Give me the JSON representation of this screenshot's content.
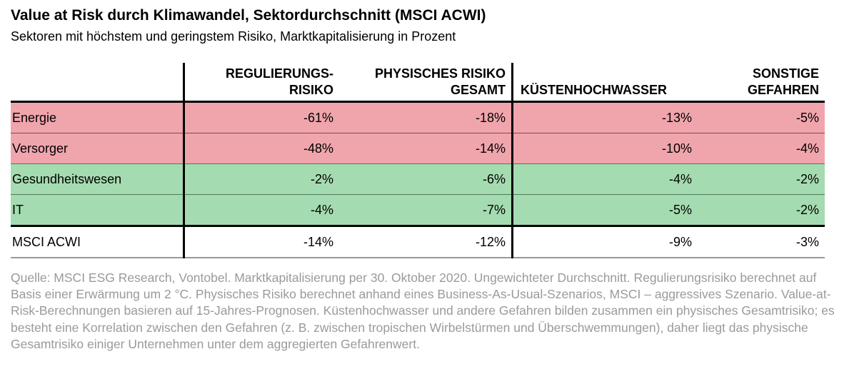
{
  "title": "Value at Risk durch Klimawandel, Sektordurchschnitt (MSCI ACWI)",
  "subtitle": "Sektoren mit höchstem und geringstem Risiko, Marktkapitalisierung in Prozent",
  "colors": {
    "high_risk": "#f0a5ad",
    "low_risk": "#a5dbb0"
  },
  "chart_data": {
    "type": "table",
    "columns": [
      "REGULIERUNGS- RISIKO",
      "PHYSISCHES RISIKO GESAMT",
      "KÜSTENHOCHWASSER",
      "SONSTIGE GEFAHREN"
    ],
    "header_lines": [
      [
        "REGULIERUNGS-",
        "RISIKO"
      ],
      [
        "PHYSISCHES RISIKO",
        "GESAMT"
      ],
      [
        "KÜSTENHOCHWASSER"
      ],
      [
        "SONSTIGE",
        "GEFAHREN"
      ]
    ],
    "rows": [
      {
        "label": "Energie",
        "group": "high",
        "values": [
          "-61%",
          "-18%",
          "-13%",
          "-5%"
        ]
      },
      {
        "label": "Versorger",
        "group": "high",
        "values": [
          "-48%",
          "-14%",
          "-10%",
          "-4%"
        ]
      },
      {
        "label": "Gesundheitswesen",
        "group": "low",
        "values": [
          "-2%",
          "-6%",
          "-4%",
          "-2%"
        ]
      },
      {
        "label": "IT",
        "group": "low",
        "values": [
          "-4%",
          "-7%",
          "-5%",
          "-2%"
        ]
      },
      {
        "label": "MSCI ACWI",
        "group": "total",
        "values": [
          "-14%",
          "-12%",
          "-9%",
          "-3%"
        ]
      }
    ]
  },
  "note": "Quelle: MSCI ESG Research, Vontobel. Marktkapitalisierung per 30. Oktober 2020. Ungewichteter Durchschnitt. Regulierungsrisiko berechnet auf Basis einer Erwärmung um 2 °C. Physisches Risiko berechnet anhand eines Business-As-Usual-Szenarios, MSCI – aggressives Szenario. Value-at-Risk-Berechnungen basieren auf 15-Jahres-Prognosen. Küstenhochwasser und andere Gefahren bilden zusammen ein physisches Gesamtrisiko; es besteht eine Korrelation zwischen den Gefahren (z. B. zwischen tropischen Wirbelstürmen und Überschwemmungen), daher liegt das physische Gesamtrisiko einiger Unternehmen unter dem aggregierten Gefahrenwert."
}
